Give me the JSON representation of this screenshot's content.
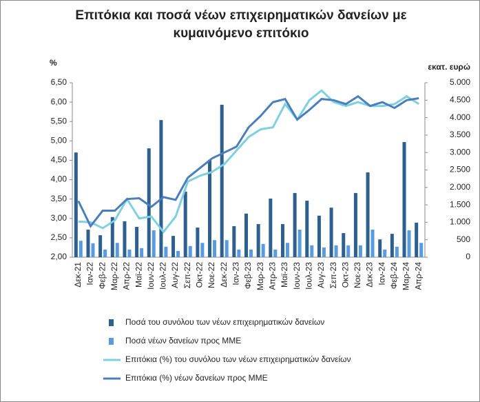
{
  "chart_data": {
    "type": "combo",
    "title": "Επιτόκια και ποσά νέων επιχειρηματικών δανείων με κυμαινόμενο επιτόκιο",
    "y_label": "%",
    "y2_label": "εκατ. ευρώ",
    "categories": [
      "Δεκ-21",
      "Ιαν-22",
      "Φεβ-22",
      "Μαρ-22",
      "Απρ-22",
      "Μαϊ-22",
      "Ιουν-22",
      "Ιουλ-22",
      "Αυγ-22",
      "Σεπ-22",
      "Οκτ-22",
      "Νοε-22",
      "Δεκ-22",
      "Ιαν-23",
      "Φεβ-23",
      "Μαρ-23",
      "Απρ-23",
      "Μαϊ-23",
      "Ιουν-23",
      "Ιουλ-23",
      "Αυγ-23",
      "Σεπ-23",
      "Οκτ-23",
      "Νοε-23",
      "Δεκ-23",
      "Ιαν-24",
      "Φεβ-24",
      "Μαρ-24",
      "Απρ-24"
    ],
    "ylim": [
      2.0,
      6.5
    ],
    "yticks": [
      {
        "value": 2.0,
        "label": "2,00"
      },
      {
        "value": 2.5,
        "label": "2,50"
      },
      {
        "value": 3.0,
        "label": "3,00"
      },
      {
        "value": 3.5,
        "label": "3,50"
      },
      {
        "value": 4.0,
        "label": "4,00"
      },
      {
        "value": 4.5,
        "label": "4,50"
      },
      {
        "value": 5.0,
        "label": "5,00"
      },
      {
        "value": 5.5,
        "label": "5,50"
      },
      {
        "value": 6.0,
        "label": "6,00"
      },
      {
        "value": 6.5,
        "label": "6,50"
      }
    ],
    "y2lim": [
      0,
      5000
    ],
    "y2ticks": [
      0,
      500,
      {
        "value": 1000,
        "label": "1.000"
      },
      {
        "value": 1500,
        "label": "1.500"
      },
      {
        "value": 2000,
        "label": "2.000"
      },
      {
        "value": 2500,
        "label": "2.500"
      },
      {
        "value": 3000,
        "label": "3.000"
      },
      {
        "value": 3500,
        "label": "3.500"
      },
      {
        "value": 4000,
        "label": "4.000"
      },
      {
        "value": 4500,
        "label": "4.500"
      },
      {
        "value": 5000,
        "label": "5.000"
      }
    ],
    "series": [
      {
        "name": "Ποσά του συνόλου των νέων επιχειρηματικών δανείων",
        "type": "bar",
        "axis": "y2",
        "color": "#2f5f8f",
        "values": [
          3000,
          790,
          630,
          1150,
          1030,
          870,
          3120,
          3930,
          610,
          1880,
          850,
          2790,
          4370,
          890,
          1250,
          950,
          1680,
          950,
          1840,
          1620,
          1190,
          1420,
          690,
          1840,
          2430,
          510,
          670,
          3300,
          990
        ]
      },
      {
        "name": "Ποσά νέων δανείων προς ΜΜΕ",
        "type": "bar",
        "axis": "y2",
        "color": "#5a9be0",
        "values": [
          470,
          400,
          220,
          410,
          220,
          260,
          770,
          300,
          180,
          320,
          410,
          490,
          490,
          220,
          220,
          380,
          220,
          410,
          790,
          340,
          280,
          340,
          340,
          340,
          790,
          220,
          300,
          770,
          410
        ]
      },
      {
        "name": "Επιτόκια (%) του συνόλου των νέων επιχειρηματικών δανείων",
        "type": "line",
        "axis": "y",
        "color": "#7ecfe0",
        "values": [
          2.92,
          2.9,
          2.75,
          2.95,
          3.5,
          3.0,
          3.05,
          2.65,
          3.05,
          3.95,
          4.1,
          4.2,
          4.4,
          4.75,
          5.1,
          5.3,
          5.35,
          5.95,
          5.55,
          6.05,
          6.3,
          6.0,
          5.9,
          6.0,
          5.9,
          5.9,
          5.95,
          6.15,
          5.95
        ]
      },
      {
        "name": "Επιτόκια (%) νέων δανείων προς ΜΜΕ",
        "type": "line",
        "axis": "y",
        "color": "#4a7ebb",
        "values": [
          3.45,
          2.8,
          3.2,
          3.2,
          3.5,
          3.52,
          3.3,
          3.55,
          3.48,
          4.05,
          4.3,
          4.55,
          4.7,
          4.85,
          5.35,
          5.65,
          6.0,
          6.08,
          5.55,
          5.8,
          6.08,
          6.05,
          5.95,
          6.15,
          5.9,
          6.0,
          5.85,
          6.05,
          6.1
        ]
      }
    ]
  }
}
